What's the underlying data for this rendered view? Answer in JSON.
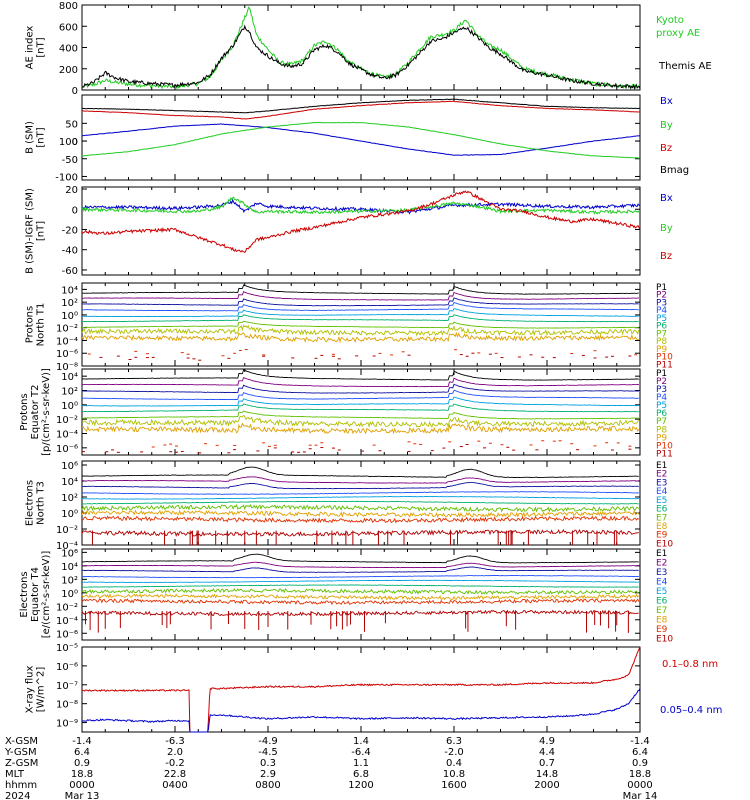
{
  "colors": {
    "black": "#000000",
    "green": "#22cc22",
    "blue": "#0000cc",
    "red": "#cc0000",
    "darkred": "#b00000"
  },
  "chart_data": [
    {
      "type": "line",
      "ylabel": [
        "AE index",
        "[nT]"
      ],
      "ylim": [
        0,
        800
      ],
      "yticks": [
        "0",
        "200",
        "400",
        "600",
        "800"
      ],
      "series": [
        {
          "name": "Kyoto proxy AE",
          "legend": [
            "Kyoto",
            "proxy AE"
          ],
          "color": "#22cc22",
          "x": [
            0,
            0.5,
            1,
            1.5,
            2,
            3,
            4,
            5,
            5.5,
            6,
            6.5,
            7,
            7.2,
            7.5,
            8,
            8.5,
            9,
            9.5,
            10,
            10.5,
            11,
            11.5,
            12,
            12.5,
            13,
            13.5,
            14,
            14.5,
            15,
            15.5,
            16,
            16.5,
            17,
            17.5,
            18,
            19,
            20,
            21,
            22,
            23,
            24
          ],
          "values": [
            30,
            50,
            90,
            70,
            55,
            40,
            30,
            60,
            120,
            280,
            420,
            680,
            780,
            520,
            380,
            260,
            240,
            280,
            420,
            460,
            380,
            260,
            200,
            150,
            120,
            150,
            250,
            380,
            500,
            520,
            560,
            660,
            520,
            420,
            380,
            200,
            150,
            100,
            60,
            40,
            30
          ]
        },
        {
          "name": "Themis AE",
          "legend": [
            "Themis AE"
          ],
          "color": "#000000",
          "x": [
            0,
            0.5,
            1,
            1.5,
            2,
            3,
            4,
            5,
            5.5,
            6,
            6.5,
            7,
            7.2,
            7.5,
            8,
            8.5,
            9,
            9.5,
            10,
            10.5,
            11,
            11.5,
            12,
            12.5,
            13,
            13.5,
            14,
            14.5,
            15,
            15.5,
            16,
            16.5,
            17,
            17.5,
            18,
            19,
            20,
            21,
            22,
            23,
            24
          ],
          "values": [
            30,
            70,
            160,
            110,
            80,
            60,
            45,
            70,
            140,
            300,
            420,
            600,
            550,
            400,
            320,
            250,
            220,
            250,
            380,
            420,
            360,
            250,
            190,
            140,
            110,
            140,
            230,
            340,
            460,
            480,
            540,
            590,
            500,
            400,
            340,
            180,
            140,
            90,
            60,
            40,
            30
          ]
        }
      ]
    },
    {
      "type": "line",
      "ylabel": [
        "B (SM)",
        "[nT]"
      ],
      "ylim": [
        -110,
        130
      ],
      "yticks": [
        "-100",
        "-50",
        "0",
        "50",
        "100"
      ],
      "series": [
        {
          "name": "Bx",
          "color": "#0000cc",
          "x": [
            0,
            2,
            4,
            6,
            8,
            10,
            12,
            14,
            16,
            18,
            20,
            22,
            24
          ],
          "values": [
            15,
            28,
            42,
            48,
            38,
            22,
            0,
            -22,
            -40,
            -38,
            -20,
            0,
            15
          ]
        },
        {
          "name": "By",
          "color": "#22cc22",
          "x": [
            0,
            2,
            4,
            6,
            8,
            10,
            12,
            14,
            16,
            18,
            20,
            22,
            24
          ],
          "values": [
            -42,
            -30,
            -10,
            20,
            40,
            52,
            52,
            40,
            18,
            -8,
            -28,
            -42,
            -48
          ]
        },
        {
          "name": "Bz",
          "color": "#cc0000",
          "x": [
            0,
            2,
            4,
            6,
            7,
            8,
            10,
            12,
            14,
            16,
            18,
            20,
            22,
            24
          ],
          "values": [
            85,
            80,
            72,
            68,
            62,
            70,
            90,
            100,
            108,
            112,
            100,
            92,
            88,
            82
          ]
        },
        {
          "name": "Bmag",
          "color": "#000000",
          "x": [
            0,
            2,
            4,
            6,
            7,
            8,
            10,
            12,
            14,
            16,
            18,
            20,
            22,
            24
          ],
          "values": [
            92,
            90,
            86,
            82,
            80,
            85,
            98,
            108,
            115,
            118,
            108,
            98,
            94,
            92
          ]
        }
      ]
    },
    {
      "type": "line",
      "ylabel": [
        "B (SM)-IGRF (SM)",
        "[nT]"
      ],
      "ylim": [
        -65,
        22
      ],
      "yticks": [
        "-60",
        "-40",
        "-20",
        "0",
        "20"
      ],
      "series": [
        {
          "name": "Bx",
          "color": "#0000cc",
          "x": [
            0,
            2,
            4,
            5,
            6,
            6.5,
            7,
            7.5,
            8,
            10,
            12,
            14,
            16,
            18,
            20,
            22,
            24
          ],
          "values": [
            2,
            2,
            1,
            2,
            4,
            8,
            -2,
            6,
            3,
            1,
            0,
            -3,
            4,
            5,
            3,
            2,
            4
          ]
        },
        {
          "name": "By",
          "color": "#22cc22",
          "x": [
            0,
            2,
            4,
            5,
            6,
            6.5,
            7,
            7.5,
            8,
            10,
            12,
            14,
            16,
            17,
            18,
            20,
            22,
            24
          ],
          "values": [
            0,
            -1,
            -2,
            -2,
            2,
            12,
            5,
            -3,
            -2,
            -3,
            -2,
            -1,
            6,
            3,
            -2,
            -1,
            -3,
            -2
          ]
        },
        {
          "name": "Bz",
          "color": "#cc0000",
          "x": [
            0,
            1,
            2,
            4,
            5,
            6,
            6.5,
            7,
            7.5,
            8,
            9,
            10,
            12,
            14,
            15,
            16,
            16.5,
            17,
            18,
            19,
            20,
            21,
            22,
            23,
            24
          ],
          "values": [
            -22,
            -24,
            -22,
            -20,
            -28,
            -35,
            -40,
            -42,
            -30,
            -28,
            -22,
            -18,
            -8,
            -2,
            5,
            14,
            18,
            12,
            0,
            -2,
            -8,
            -12,
            -10,
            -14,
            -18
          ]
        }
      ]
    },
    {
      "type": "line",
      "log": true,
      "ylabel": [
        "Protons",
        "North T1"
      ],
      "ylim": [
        -8,
        5
      ],
      "yticks": [
        "10⁴",
        "10²",
        "10⁰",
        "10⁻²",
        "10⁻⁴",
        "10⁻⁶",
        "10⁻⁸"
      ],
      "channels": [
        "P1",
        "P2",
        "P3",
        "P4",
        "P5",
        "P6",
        "P7",
        "P8",
        "P9",
        "P10",
        "P11"
      ],
      "channel_colors": [
        "#000000",
        "#800080",
        "#1010a0",
        "#2050ff",
        "#00a0e0",
        "#00b070",
        "#60c000",
        "#b0c000",
        "#e0a000",
        "#e03000",
        "#b00000"
      ],
      "base_levels": [
        3.4,
        2.5,
        1.6,
        0.8,
        -0.1,
        -0.9,
        -1.9,
        -2.7,
        -3.7,
        -6.0,
        -6.6
      ],
      "events": [
        6.9,
        16.0
      ]
    },
    {
      "type": "line",
      "log": true,
      "ylabel": [
        "Protons",
        "Equator T2",
        "[p/(cm²-s-sr-keV)]"
      ],
      "ylim": [
        -7,
        5
      ],
      "yticks": [
        "10⁴",
        "10²",
        "10⁰",
        "10⁻²",
        "10⁻⁴",
        "10⁻⁶"
      ],
      "channels": [
        "P1",
        "P2",
        "P3",
        "P4",
        "P5",
        "P6",
        "P7",
        "P8",
        "P9",
        "P10",
        "P11"
      ],
      "channel_colors": [
        "#000000",
        "#800080",
        "#1010a0",
        "#2050ff",
        "#00a0e0",
        "#00b070",
        "#60c000",
        "#b0c000",
        "#e0a000",
        "#e03000",
        "#b00000"
      ],
      "base_levels": [
        3.6,
        2.7,
        1.8,
        0.9,
        0.0,
        -0.8,
        -1.8,
        -2.6,
        -3.5,
        -5.5,
        -6.3
      ],
      "events": [
        6.9,
        16.0
      ]
    },
    {
      "type": "line",
      "log": true,
      "ylabel": [
        "Electrons",
        "North T3"
      ],
      "ylim": [
        -4,
        6.5
      ],
      "yticks": [
        "10⁶",
        "10⁴",
        "10²",
        "10⁰",
        "10⁻²",
        "10⁻⁴"
      ],
      "channels": [
        "E1",
        "E2",
        "E3",
        "E4",
        "E5",
        "E6",
        "E7",
        "E8",
        "E9",
        "E10"
      ],
      "channel_colors": [
        "#000000",
        "#800080",
        "#1010a0",
        "#2050ff",
        "#00a0e0",
        "#00b070",
        "#60c000",
        "#e0a000",
        "#e03000",
        "#b00000"
      ],
      "base_levels": [
        4.6,
        3.9,
        3.2,
        2.5,
        1.9,
        1.3,
        0.6,
        -0.1,
        -0.8,
        -2.5
      ],
      "events": [
        6.8,
        16.2
      ]
    },
    {
      "type": "line",
      "log": true,
      "ylabel": [
        "Electrons",
        "Equator T4",
        "[e/(cm²-s-sr-keV)]"
      ],
      "ylim": [
        -7,
        6.5
      ],
      "yticks": [
        "10⁶",
        "10⁴",
        "10²",
        "10⁰",
        "10⁻²",
        "10⁻⁴",
        "10⁻⁶"
      ],
      "channels": [
        "E1",
        "E2",
        "E3",
        "E4",
        "E5",
        "E6",
        "E7",
        "E8",
        "E9",
        "E10"
      ],
      "channel_colors": [
        "#000000",
        "#800080",
        "#1010a0",
        "#2050ff",
        "#00a0e0",
        "#00b070",
        "#60c000",
        "#e0a000",
        "#e03000",
        "#b00000"
      ],
      "base_levels": [
        4.6,
        3.9,
        3.2,
        2.4,
        1.7,
        1.0,
        0.2,
        -0.6,
        -1.3,
        -3.0
      ],
      "events": [
        7.0,
        16.2
      ]
    },
    {
      "type": "line",
      "log": true,
      "ylabel": [
        "X-ray flux",
        "[W/m^2]"
      ],
      "ylim": [
        -9.5,
        -5.0
      ],
      "yticks": [
        "10⁻⁵",
        "10⁻⁶",
        "10⁻⁷",
        "10⁻⁸",
        "10⁻⁹"
      ],
      "series": [
        {
          "name": "0.1–0.8 nm",
          "color": "#cc0000",
          "x": [
            0,
            1,
            2,
            3,
            4,
            4.6,
            4.62,
            5.4,
            5.5,
            6,
            8,
            10,
            12,
            14,
            16,
            18,
            20,
            21,
            22,
            23,
            23.5,
            24
          ],
          "values": [
            -7.3,
            -7.3,
            -7.3,
            -7.3,
            -7.3,
            -7.3,
            -9.9,
            -9.9,
            -7.2,
            -7.2,
            -7.1,
            -7.1,
            -7.0,
            -7.0,
            -7.0,
            -7.0,
            -6.9,
            -6.9,
            -6.9,
            -6.7,
            -6.5,
            -5.0
          ]
        },
        {
          "name": "0.05–0.4 nm",
          "color": "#0000cc",
          "x": [
            0,
            1,
            2,
            3,
            4,
            4.6,
            4.62,
            5.4,
            5.5,
            6,
            7,
            8,
            10,
            12,
            14,
            16,
            18,
            20,
            21,
            22,
            23,
            23.5,
            24
          ],
          "values": [
            -8.9,
            -8.85,
            -8.9,
            -8.95,
            -8.9,
            -8.9,
            -9.9,
            -9.9,
            -8.6,
            -8.6,
            -8.7,
            -8.8,
            -8.7,
            -8.8,
            -8.75,
            -8.8,
            -8.75,
            -8.7,
            -8.65,
            -8.55,
            -8.3,
            -8.0,
            -7.2
          ]
        }
      ]
    }
  ],
  "right_labels": {
    "panel1": [
      "Kyoto",
      "proxy AE",
      "Themis AE"
    ],
    "panel2": [
      "Bx",
      "By",
      "Bz",
      "Bmag"
    ],
    "panel3": [
      "Bx",
      "By",
      "Bz"
    ],
    "panel8": [
      "0.1–0.8 nm",
      "0.05–0.4 nm"
    ]
  },
  "x_axis": {
    "row_labels": [
      "X-GSM",
      "Y-GSM",
      "Z-GSM",
      "MLT",
      "hhmm",
      "2024"
    ],
    "columns": [
      {
        "hour": 0,
        "values": [
          "-1.4",
          "6.4",
          "0.9",
          "18.8",
          "0000",
          "Mar 13"
        ]
      },
      {
        "hour": 4,
        "values": [
          "-6.3",
          "2.0",
          "-0.2",
          "22.8",
          "0400",
          ""
        ]
      },
      {
        "hour": 8,
        "values": [
          "-4.9",
          "-4.5",
          "0.3",
          "2.9",
          "0800",
          ""
        ]
      },
      {
        "hour": 12,
        "values": [
          "1.4",
          "-6.4",
          "1.1",
          "6.8",
          "1200",
          ""
        ]
      },
      {
        "hour": 16,
        "values": [
          "6.3",
          "-2.0",
          "0.4",
          "10.8",
          "1600",
          ""
        ]
      },
      {
        "hour": 20,
        "values": [
          "4.9",
          "4.4",
          "0.7",
          "14.8",
          "2000",
          ""
        ]
      },
      {
        "hour": 24,
        "values": [
          "-1.4",
          "6.4",
          "0.9",
          "18.8",
          "0000",
          "Mar 14"
        ]
      }
    ]
  }
}
